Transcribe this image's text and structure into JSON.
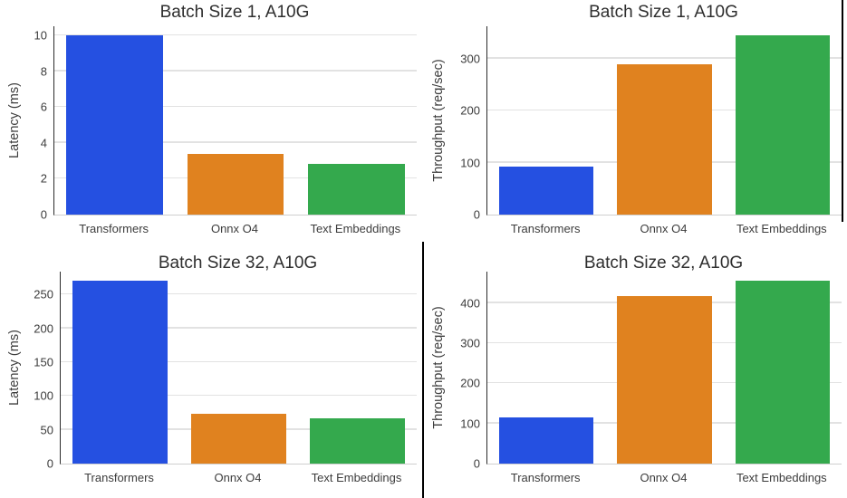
{
  "palette": {
    "bar_blue": "#2550E1",
    "bar_orange": "#E0821F",
    "bar_green": "#34A94D",
    "grid_line": "#E2E2E2",
    "baseline": "#CFCFCF",
    "spine": "#2B2B2B",
    "divider": "#000000",
    "title_text": "#2E2E2E",
    "label_text": "#3C3C3C"
  },
  "chart_data": [
    {
      "id": "batch1-latency",
      "type": "bar",
      "title": "Batch Size 1, A10G",
      "xlabel": "",
      "ylabel": "Latency (ms)",
      "categories": [
        "Transformers",
        "Onnx O4",
        "Text Embeddings"
      ],
      "values": [
        10.0,
        3.4,
        2.85
      ],
      "yticks": [
        0,
        2,
        4,
        6,
        8,
        10
      ],
      "ylim": [
        0,
        10.5
      ],
      "grid": true,
      "legend": "none",
      "bar_colors": [
        "#2550E1",
        "#E0821F",
        "#34A94D"
      ]
    },
    {
      "id": "batch1-throughput",
      "type": "bar",
      "title": "Batch Size 1, A10G",
      "xlabel": "",
      "ylabel": "Throughput (req/sec)",
      "categories": [
        "Transformers",
        "Onnx O4",
        "Text Embeddings"
      ],
      "values": [
        92,
        289,
        345
      ],
      "yticks": [
        0,
        100,
        200,
        300
      ],
      "ylim": [
        0,
        362
      ],
      "grid": true,
      "legend": "none",
      "bar_colors": [
        "#2550E1",
        "#E0821F",
        "#34A94D"
      ]
    },
    {
      "id": "batch32-latency",
      "type": "bar",
      "title": "Batch Size 32, A10G",
      "xlabel": "",
      "ylabel": "Latency (ms)",
      "categories": [
        "Transformers",
        "Onnx O4",
        "Text Embeddings"
      ],
      "values": [
        270,
        74,
        67
      ],
      "yticks": [
        0,
        50,
        100,
        150,
        200,
        250
      ],
      "ylim": [
        0,
        284
      ],
      "grid": true,
      "legend": "none",
      "bar_colors": [
        "#2550E1",
        "#E0821F",
        "#34A94D"
      ]
    },
    {
      "id": "batch32-throughput",
      "type": "bar",
      "title": "Batch Size 32, A10G",
      "xlabel": "",
      "ylabel": "Throughput (req/sec)",
      "categories": [
        "Transformers",
        "Onnx O4",
        "Text Embeddings"
      ],
      "values": [
        115,
        418,
        455
      ],
      "yticks": [
        0,
        100,
        200,
        300,
        400
      ],
      "ylim": [
        0,
        478
      ],
      "grid": true,
      "legend": "none",
      "bar_colors": [
        "#2550E1",
        "#E0821F",
        "#34A94D"
      ]
    }
  ]
}
